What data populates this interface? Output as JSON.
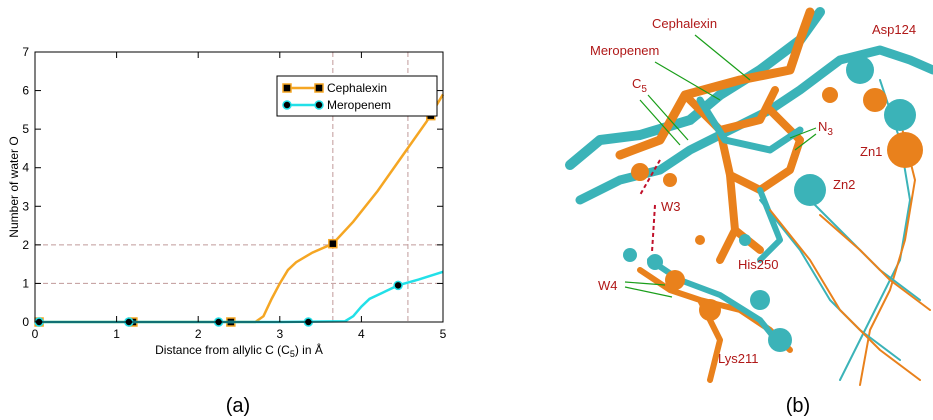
{
  "chart_data": {
    "type": "line",
    "x_label": {
      "text": "Distance from allylic C (C",
      "sub": "5",
      "tail": ")  in Å"
    },
    "y_label": "Number of water O",
    "caption": "(a)",
    "xlim": [
      0,
      5
    ],
    "ylim": [
      0,
      7
    ],
    "xticks": [
      0,
      1,
      2,
      3,
      4,
      5
    ],
    "yticks": [
      0,
      1,
      2,
      3,
      4,
      5,
      6,
      7
    ],
    "reference_x": [
      3.65,
      4.57
    ],
    "reference_y": [
      1,
      2
    ],
    "reference_color": "#c09a9a",
    "legend": "top-right",
    "series": [
      {
        "name": "Cephalexin",
        "color": "#f5a623",
        "marker": "square",
        "x": [
          0,
          1,
          2,
          2.7,
          2.8,
          2.9,
          3.0,
          3.1,
          3.2,
          3.4,
          3.65,
          3.9,
          4.2,
          4.5,
          4.8,
          5.0
        ],
        "values": [
          0,
          0,
          0,
          0,
          0.15,
          0.6,
          1.0,
          1.35,
          1.55,
          1.8,
          2.03,
          2.6,
          3.4,
          4.3,
          5.2,
          5.9
        ],
        "marker_x": [
          0.05,
          1.2,
          2.4,
          3.65,
          4.85
        ],
        "marker_values": [
          0,
          0,
          0,
          2.03,
          5.35
        ]
      },
      {
        "name": "Meropenem",
        "color": "#22e0e8",
        "marker": "circle",
        "x": [
          0,
          1,
          2,
          3,
          3.8,
          3.9,
          4.0,
          4.1,
          4.3,
          4.45,
          4.7,
          5.0
        ],
        "values": [
          0,
          0,
          0,
          0,
          0.02,
          0.15,
          0.4,
          0.6,
          0.8,
          0.95,
          1.1,
          1.3
        ],
        "marker_x": [
          0.05,
          1.15,
          2.25,
          3.35,
          4.45
        ],
        "marker_values": [
          0,
          0,
          0,
          0,
          0.95
        ]
      }
    ]
  },
  "structure": {
    "caption": "(b)",
    "labels": [
      {
        "text": "Cephalexin",
        "sub": ""
      },
      {
        "text": "Meropenem",
        "sub": ""
      },
      {
        "text": "C",
        "sub": "5"
      },
      {
        "text": "N",
        "sub": "3"
      },
      {
        "text": "Asp124",
        "sub": ""
      },
      {
        "text": "Zn1",
        "sub": ""
      },
      {
        "text": "Zn2",
        "sub": ""
      },
      {
        "text": "W3",
        "sub": ""
      },
      {
        "text": "W4",
        "sub": ""
      },
      {
        "text": "His250",
        "sub": ""
      },
      {
        "text": "Lys211",
        "sub": ""
      }
    ]
  }
}
